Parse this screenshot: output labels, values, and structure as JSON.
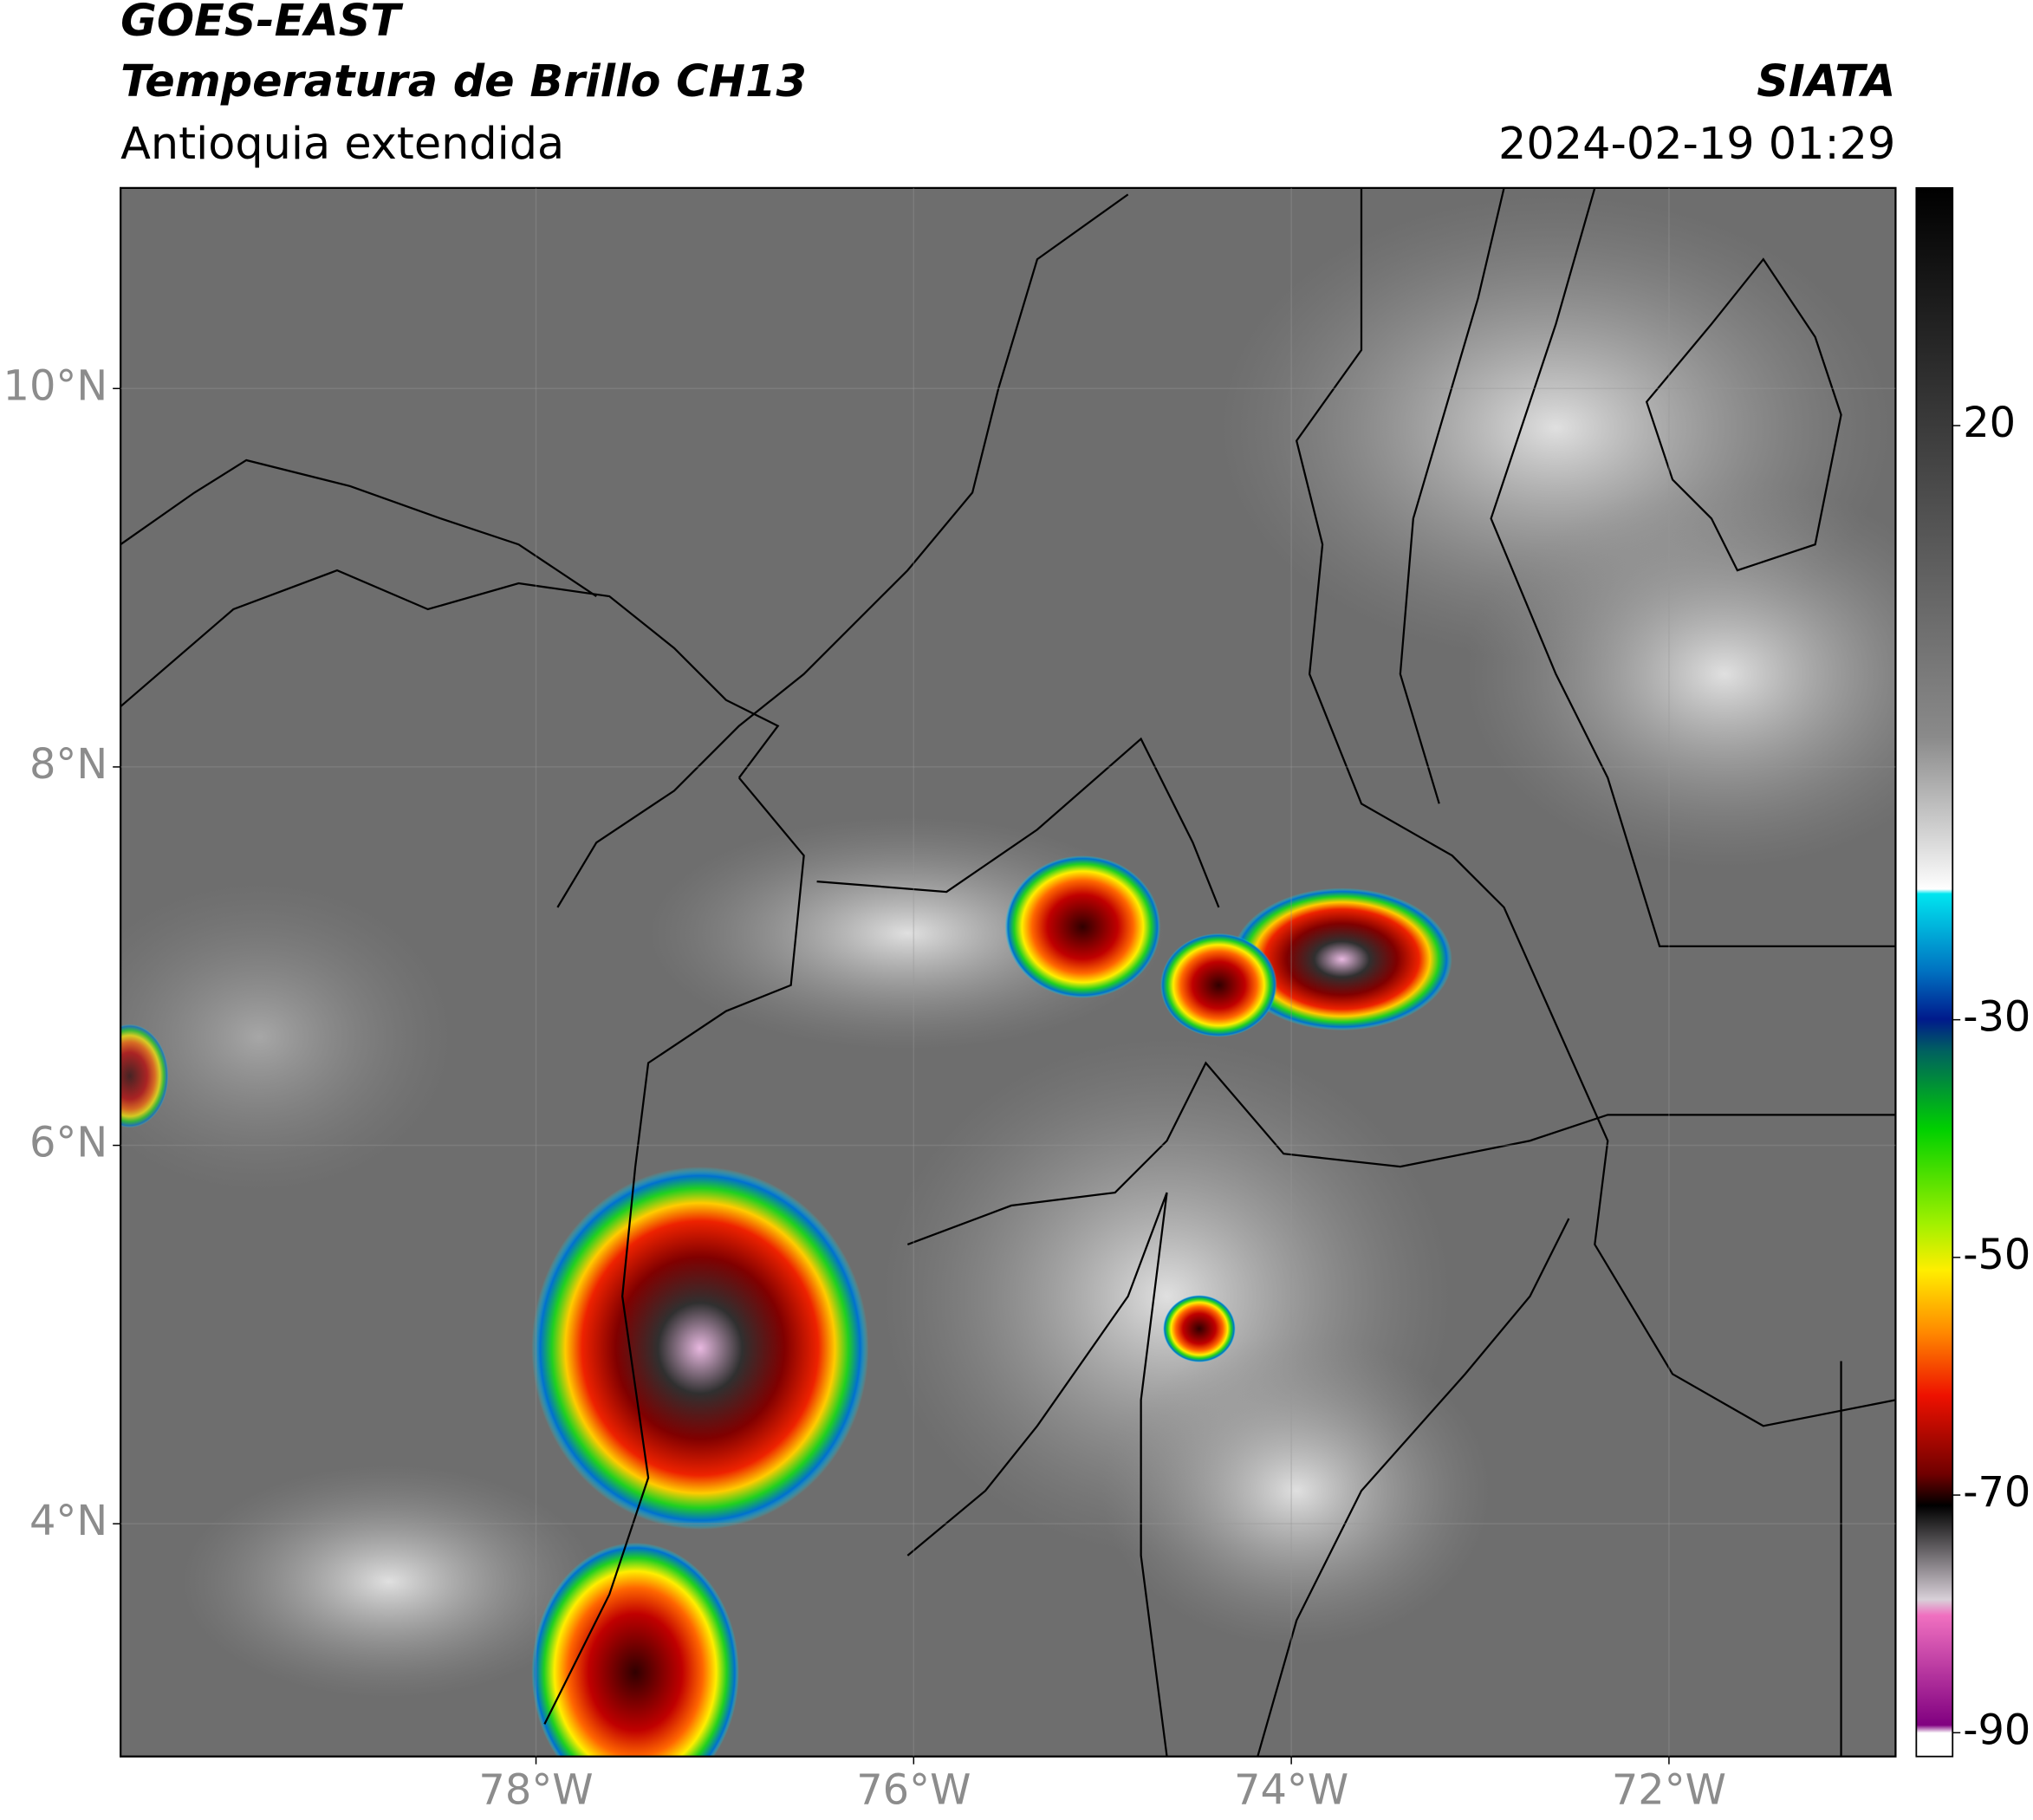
{
  "header": {
    "title": "GOES-EAST",
    "subtitle": "Temperatura de Brillo CH13",
    "region": "Antioquia extendida",
    "source": "SIATA",
    "datetime": "2024-02-19 01:29"
  },
  "map": {
    "xlim": [
      -80.2,
      -70.8
    ],
    "ylim": [
      2.77,
      11.06
    ],
    "xticks": [
      {
        "value": -78,
        "label": "78°W"
      },
      {
        "value": -76,
        "label": "76°W"
      },
      {
        "value": -74,
        "label": "74°W"
      },
      {
        "value": -72,
        "label": "72°W"
      }
    ],
    "yticks": [
      {
        "value": 4,
        "label": "4°N"
      },
      {
        "value": 6,
        "label": "6°N"
      },
      {
        "value": 8,
        "label": "8°N"
      },
      {
        "value": 10,
        "label": "10°N"
      }
    ]
  },
  "colorbar": {
    "lim": [
      -92,
      40
    ],
    "ticks": [
      20,
      -30,
      -50,
      -70,
      -90
    ]
  }
}
